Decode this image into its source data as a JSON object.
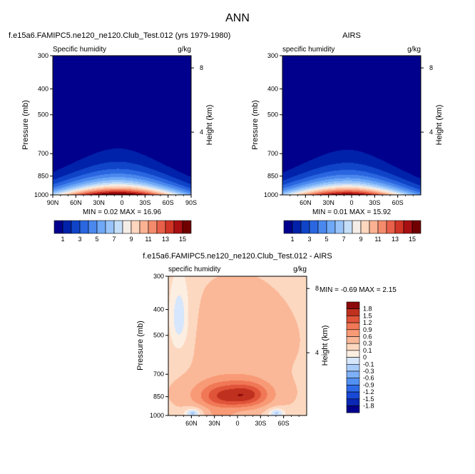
{
  "title": "ANN",
  "colors": {
    "abs_palette": [
      "#00008c",
      "#0022aa",
      "#1044c8",
      "#2a66e0",
      "#4a88ee",
      "#6ea8f6",
      "#98c4fa",
      "#c4def8",
      "#f4ece6",
      "#fcd6be",
      "#fab293",
      "#f48b6c",
      "#e8604a",
      "#d03426",
      "#a80f12",
      "#700000"
    ],
    "diff_palette": [
      "#00008c",
      "#0a28b4",
      "#1848d6",
      "#2e6ae8",
      "#5290f2",
      "#7eb0f8",
      "#a8ccfa",
      "#d6e6fc",
      "#fdeee2",
      "#fcd8c0",
      "#fab898",
      "#f89a76",
      "#f07856",
      "#e0543a",
      "#c0301e",
      "#8c0a0a"
    ]
  },
  "chart_data": [
    {
      "id": "model",
      "type": "heatmap",
      "title": "f.e15a6.FAMIPC5.ne120_ne120.Club_Test.012 (yrs 1979-1980)",
      "subtitle_left": "Specific humidity",
      "subtitle_right": "g/kg",
      "xlabel": "",
      "ylabel": "Pressure (mb)",
      "y2label": "Height (km)",
      "x_ticks": [
        "90N",
        "60N",
        "30N",
        "0",
        "30S",
        "60S",
        "90S"
      ],
      "y_ticks": [
        "300",
        "400",
        "500",
        "700",
        "850",
        "1000"
      ],
      "y2_ticks": [
        "8",
        "4"
      ],
      "x_range": [
        90,
        -90
      ],
      "y_range": [
        300,
        1000
      ],
      "stats": "MIN =  0.02  MAX = 16.96",
      "min": 0.02,
      "max": 16.96,
      "contour_levels": [
        1,
        2,
        3,
        4,
        5,
        6,
        7,
        8,
        9,
        10,
        11,
        12,
        13,
        14,
        15
      ],
      "peak_lat": 5
    },
    {
      "id": "obs",
      "type": "heatmap",
      "title": "AIRS",
      "subtitle_left": "specific humidity",
      "subtitle_right": "g/kg",
      "xlabel": "",
      "ylabel": "Pressure (mb)",
      "y2label": "Height (km)",
      "x_ticks": [
        "60N",
        "30N",
        "0",
        "30S",
        "60S"
      ],
      "y_ticks": [
        "300",
        "400",
        "500",
        "700",
        "850",
        "1000"
      ],
      "y2_ticks": [
        "8",
        "4"
      ],
      "x_range": [
        90,
        -90
      ],
      "y_range": [
        300,
        1000
      ],
      "stats": "MIN =  0.01  MAX = 15.92",
      "min": 0.01,
      "max": 15.92,
      "contour_levels": [
        1,
        2,
        3,
        4,
        5,
        6,
        7,
        8,
        9,
        10,
        11,
        12,
        13,
        14,
        15
      ],
      "peak_lat": 5
    },
    {
      "id": "diff",
      "type": "heatmap",
      "title": "f.e15a6.FAMIPC5.ne120_ne120.Club_Test.012 - AIRS",
      "subtitle_left": "specific humidity",
      "subtitle_right": "g/kg",
      "xlabel": "",
      "ylabel": "Pressure (mb)",
      "y2label": "Height (km)",
      "x_ticks": [
        "60N",
        "30N",
        "0",
        "30S",
        "60S"
      ],
      "y_ticks": [
        "300",
        "400",
        "500",
        "700",
        "850",
        "1000"
      ],
      "y2_ticks": [
        "8",
        "4"
      ],
      "x_range": [
        90,
        -90
      ],
      "y_range": [
        300,
        1000
      ],
      "stats": "MIN = -0.69  MAX =  2.15",
      "min": -0.69,
      "max": 2.15,
      "contour_levels": [
        -1.8,
        -1.5,
        -1.2,
        -0.9,
        -0.6,
        -0.3,
        -0.1,
        0,
        0.1,
        0.3,
        0.6,
        0.9,
        1.2,
        1.5,
        1.8
      ]
    }
  ],
  "colorbar_abs": {
    "labels": [
      "1",
      "3",
      "5",
      "7",
      "9",
      "11",
      "13",
      "15"
    ]
  },
  "colorbar_diff": {
    "labels": [
      "1.8",
      "1.5",
      "1.2",
      "0.9",
      "0.6",
      "0.3",
      "0.1",
      "0",
      "-0.1",
      "-0.3",
      "-0.6",
      "-0.9",
      "-1.2",
      "-1.5",
      "-1.8"
    ]
  }
}
